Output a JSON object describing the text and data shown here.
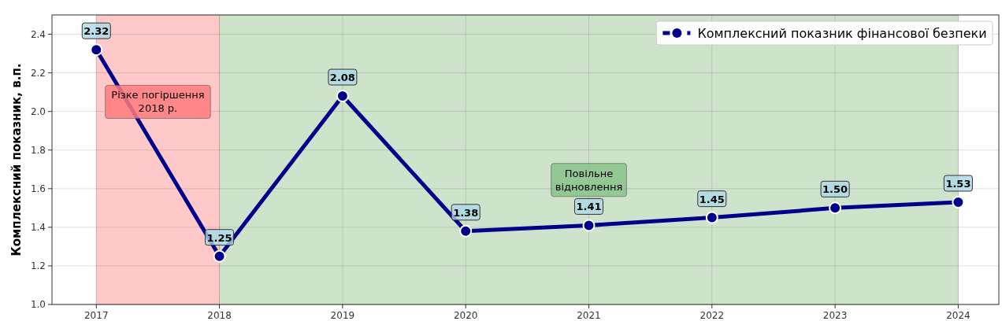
{
  "chart_data": {
    "type": "line",
    "ylabel": "Комплексний показник, в.п.",
    "x": [
      2017,
      2018,
      2019,
      2020,
      2021,
      2022,
      2023,
      2024
    ],
    "series": [
      {
        "name": "Комплексний показник фінансової безпеки",
        "color": "#00008b",
        "values": [
          2.32,
          1.25,
          2.08,
          1.38,
          1.41,
          1.45,
          1.5,
          1.53
        ],
        "value_labels": [
          "2.32",
          "1.25",
          "2.08",
          "1.38",
          "1.41",
          "1.45",
          "1.50",
          "1.53"
        ]
      }
    ],
    "xlim": [
      2016.64,
      2024.33
    ],
    "xticks": [
      2017,
      2018,
      2019,
      2020,
      2021,
      2022,
      2023,
      2024
    ],
    "ylim": [
      1.0,
      2.5
    ],
    "yticks": [
      {
        "value": 1.0,
        "label": "1.0"
      },
      {
        "value": 1.2,
        "label": "1.2"
      },
      {
        "value": 1.4,
        "label": "1.4"
      },
      {
        "value": 1.6,
        "label": "1.6"
      },
      {
        "value": 1.8,
        "label": "1.8"
      },
      {
        "value": 2.0,
        "label": "2.0"
      },
      {
        "value": 2.2,
        "label": "2.2"
      },
      {
        "value": 2.4,
        "label": "2.4"
      }
    ],
    "bands": [
      {
        "axis": "x",
        "from": 2017,
        "to": 2018,
        "color": "#ffc9c9",
        "label": "Різке погіршення\n2018 р."
      },
      {
        "axis": "x",
        "from": 2018,
        "to": 2024,
        "color": "#cfe3cc",
        "label": "Повільне\nвідновлення"
      }
    ],
    "grid": true,
    "legend": "top right",
    "marker": "circle",
    "line_style": "solid"
  }
}
